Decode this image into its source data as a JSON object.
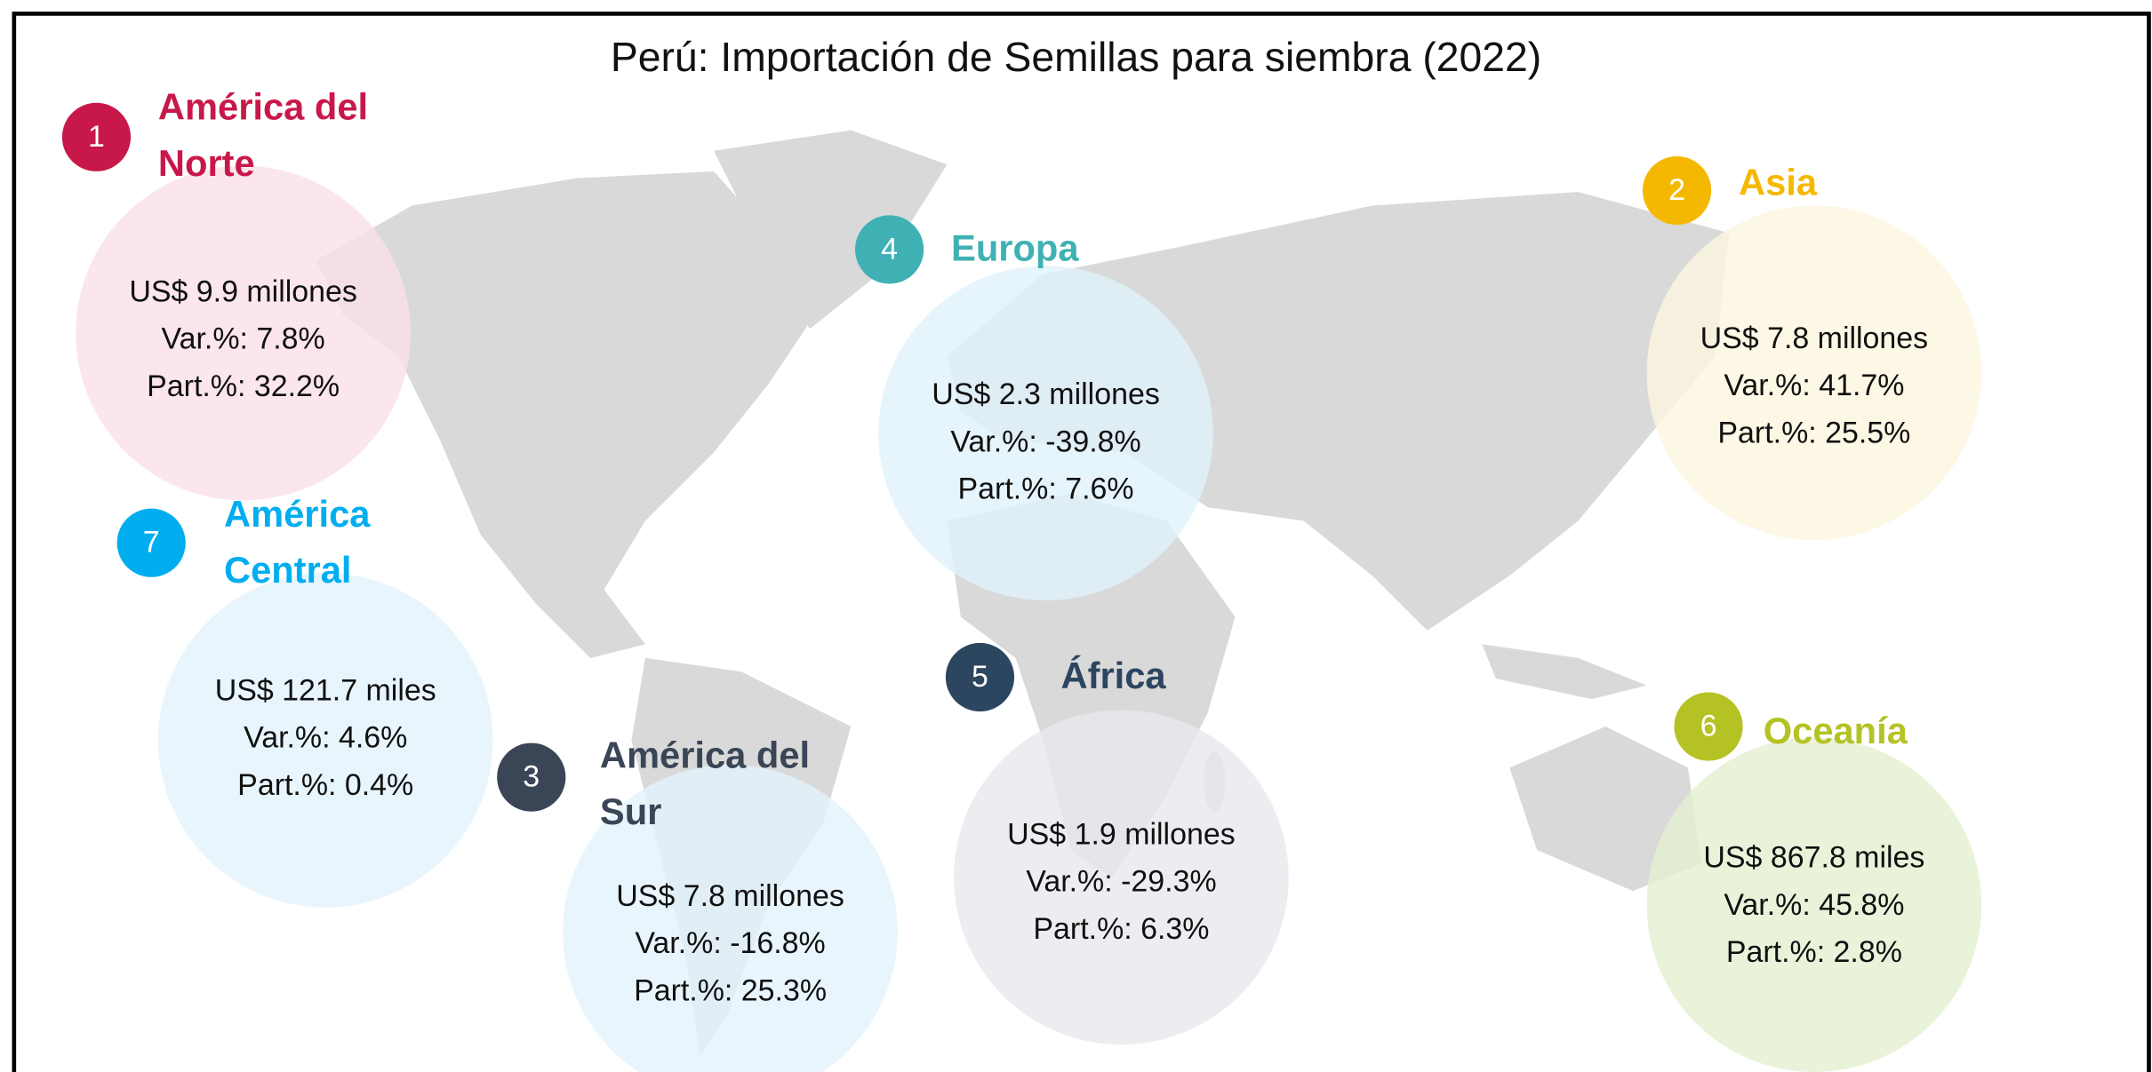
{
  "title": "Perú: Importación de Semillas para siembra (2022)",
  "regions": [
    {
      "number": "1",
      "name_lines": [
        "América del",
        "Norte"
      ],
      "lines": [
        "US$ 9.9 millones",
        "Var.%: 7.8%",
        "Part.%: 32.2%"
      ],
      "color": "#c8184a",
      "bubble_color": "#f9e1e7"
    },
    {
      "number": "2",
      "name_lines": [
        "Asia"
      ],
      "lines": [
        "US$ 7.8 millones",
        "Var.%: 41.7%",
        "Part.%: 25.5%"
      ],
      "color": "#f5b800",
      "bubble_color": "#fdf5df"
    },
    {
      "number": "4",
      "name_lines": [
        "Europa"
      ],
      "lines": [
        "US$ 2.3 millones",
        "Var.%: -39.8%",
        "Part.%: 7.6%"
      ],
      "color": "#3fb1b4",
      "bubble_color": "#e0f1fa"
    },
    {
      "number": "7",
      "name_lines": [
        "América",
        "Central"
      ],
      "lines": [
        "US$ 121.7 miles",
        "Var.%: 4.6%",
        "Part.%: 0.4%"
      ],
      "color": "#00aeef",
      "bubble_color": "#e3f3fb"
    },
    {
      "number": "3",
      "name_lines": [
        "América del",
        "Sur"
      ],
      "lines": [
        "US$ 7.8 millones",
        "Var.%: -16.8%",
        "Part.%: 25.3%"
      ],
      "color": "#3a4556",
      "bubble_color": "#e3f3fb"
    },
    {
      "number": "5",
      "name_lines": [
        "África"
      ],
      "lines": [
        "US$ 1.9 millones",
        "Var.%: -29.3%",
        "Part.%: 6.3%"
      ],
      "color": "#2c4660",
      "bubble_color": "#e6e9ed"
    },
    {
      "number": "6",
      "name_lines": [
        "Oceanía"
      ],
      "lines": [
        "US$ 867.8 miles",
        "Var.%: 45.8%",
        "Part.%: 2.8%"
      ],
      "color": "#b5c224",
      "bubble_color": "#e4f0d2"
    }
  ]
}
